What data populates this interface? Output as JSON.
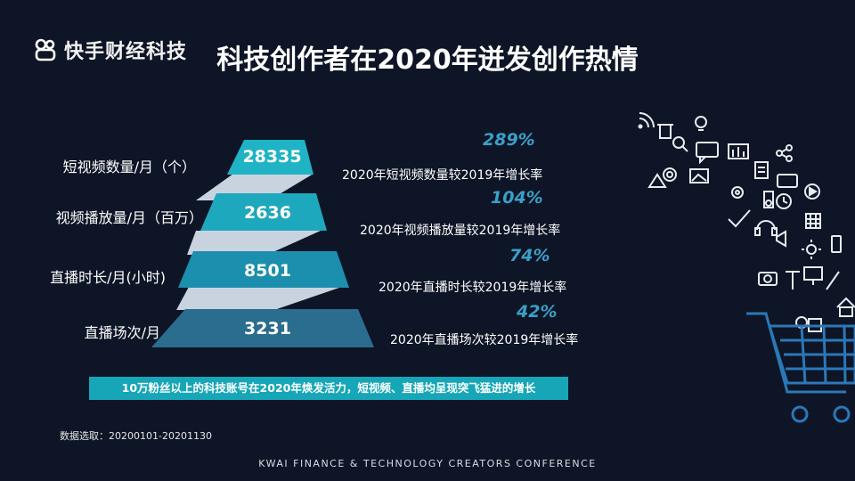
{
  "header": {
    "logo_text": "快手财经科技",
    "title": "科技创作者在2020年迸发创作热情"
  },
  "rows": [
    {
      "label": "短视频数量/月（个）",
      "value": "28335",
      "percent": "289%",
      "compare": "2020年短视频数量较2019年增长率"
    },
    {
      "label": "视频播放量/月（百万）",
      "value": "2636",
      "percent": "104%",
      "compare": "2020年视频播放量较2019年增长率"
    },
    {
      "label": "直播时长/月(小时)",
      "value": "8501",
      "percent": "74%",
      "compare": "2020年直播时长较2019年增长率"
    },
    {
      "label": "直播场次/月",
      "value": "3231",
      "percent": "42%",
      "compare": "2020年直播场次较2019年增长率"
    }
  ],
  "banner": "10万粉丝以上的科技账号在2020年焕发活力，短视频、直播均呈现突飞猛进的增长",
  "source": "数据选取：20200101-20201130",
  "footer": "KWAI FINANCE & TECHNOLOGY CREATORS CONFERENCE",
  "colors": {
    "background": "#0d1526",
    "teal_1": "#1fb3c5",
    "teal_2": "#1ea8bd",
    "teal_3": "#1b8fad",
    "teal_4": "#2a6d8e",
    "percent": "#3aa0c8",
    "banner": "#16a6b8"
  }
}
